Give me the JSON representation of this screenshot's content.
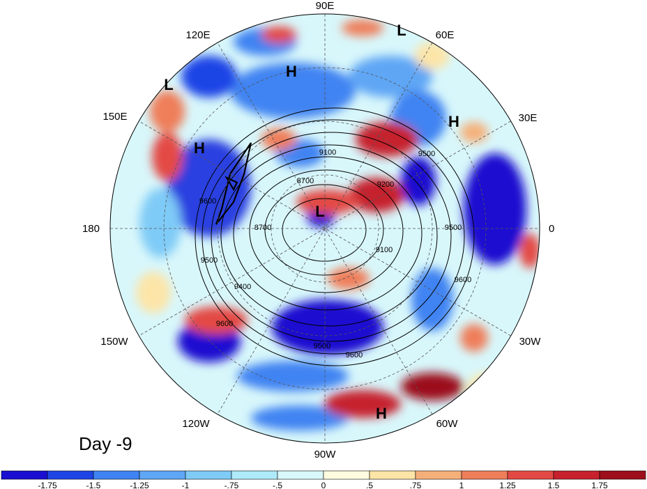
{
  "panel_label": "Day -9",
  "longitude_labels": [
    {
      "id": "90E",
      "text": "90E"
    },
    {
      "id": "60E",
      "text": "60E"
    },
    {
      "id": "30E",
      "text": "30E"
    },
    {
      "id": "0",
      "text": "0"
    },
    {
      "id": "30W",
      "text": "30W"
    },
    {
      "id": "60W",
      "text": "60W"
    },
    {
      "id": "90W",
      "text": "90W"
    },
    {
      "id": "120W",
      "text": "120W"
    },
    {
      "id": "150W",
      "text": "150W"
    },
    {
      "id": "180",
      "text": "180"
    },
    {
      "id": "150E",
      "text": "150E"
    },
    {
      "id": "120E",
      "text": "120E"
    }
  ],
  "contour_labels": [
    "9100",
    "8700",
    "9200",
    "8700",
    "9100",
    "9500",
    "9500",
    "9600",
    "9400",
    "9600",
    "9500",
    "9600",
    "9500",
    "9600",
    "9500",
    "9700"
  ],
  "pressure_centers": [
    {
      "type": "L",
      "id": "L-north"
    },
    {
      "type": "L",
      "id": "L-pacific"
    },
    {
      "type": "L",
      "id": "L-pole"
    },
    {
      "type": "H",
      "id": "H-siberia"
    },
    {
      "type": "H",
      "id": "H-europe"
    },
    {
      "type": "H",
      "id": "H-pacific"
    },
    {
      "type": "H",
      "id": "H-southamerica"
    }
  ],
  "colorbar": {
    "ticks": [
      "-1.75",
      "-1.5",
      "-1.25",
      "-1",
      "-.75",
      "-.5",
      "0",
      ".5",
      ".75",
      "1",
      "1.25",
      "1.5",
      "1.75"
    ],
    "colors": [
      "#1a0fd0",
      "#1f44e6",
      "#3f83f2",
      "#5fa6f5",
      "#7fcbf7",
      "#aeeaf9",
      "#d8f7fb",
      "#fffbe0",
      "#fde5a8",
      "#f5b07a",
      "#ef7e5a",
      "#e34944",
      "#c6212d",
      "#9c0f1b"
    ]
  },
  "colors": {
    "deep_blue": "#1a0fd0",
    "blue": "#3f83f2",
    "light_blue": "#aeeaf9",
    "pale": "#d8f7fb",
    "orange": "#f5b07a",
    "red": "#e34944",
    "dark_red": "#9c0f1b",
    "contour": "#000000"
  }
}
